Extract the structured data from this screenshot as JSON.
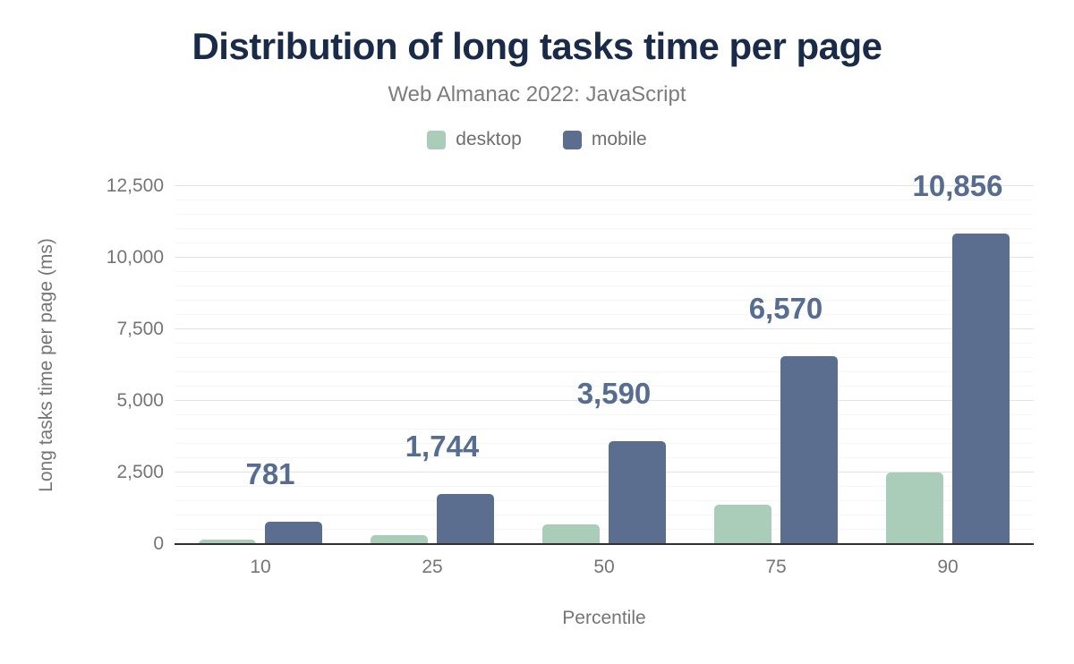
{
  "header": {
    "title": "Distribution of long tasks time per page",
    "subtitle": "Web Almanac 2022: JavaScript"
  },
  "legend": {
    "items": [
      {
        "label": "desktop",
        "color": "#a9cdb9"
      },
      {
        "label": "mobile",
        "color": "#5b6e90"
      }
    ]
  },
  "axes": {
    "x_title": "Percentile",
    "y_title": "Long tasks time per page (ms)"
  },
  "colors": {
    "title_text": "#1a2b49",
    "subtitle_text": "#7d7d7d",
    "axis_text": "#757575",
    "legend_text": "#6e6e6e",
    "desktop_bar": "#a9cdb9",
    "mobile_bar": "#5b6e90",
    "value_label_text": "#566d91",
    "major_gridline": "#e3e3e3",
    "minor_gridline": "#f5f5f5",
    "axis_line": "#2f2f2f",
    "background": "#ffffff"
  },
  "chart_data": {
    "type": "bar",
    "title": "Distribution of long tasks time per page",
    "subtitle": "Web Almanac 2022: JavaScript",
    "categories": [
      "10",
      "25",
      "50",
      "75",
      "90"
    ],
    "series": [
      {
        "name": "desktop",
        "color": "#a9cdb9",
        "values": [
          150,
          310,
          690,
          1360,
          2500
        ],
        "data_labels": []
      },
      {
        "name": "mobile",
        "color": "#5b6e90",
        "values": [
          781,
          1744,
          3590,
          6570,
          10856
        ],
        "data_labels": [
          "781",
          "1,744",
          "3,590",
          "6,570",
          "10,856"
        ]
      }
    ],
    "xlabel": "Percentile",
    "ylabel": "Long tasks time per page (ms)",
    "ylim": [
      0,
      12500
    ],
    "yticks": [
      0,
      2500,
      5000,
      7500,
      10000,
      12500
    ],
    "ytick_labels": [
      "0",
      "2,500",
      "5,000",
      "7,500",
      "10,000",
      "12,500"
    ],
    "minor_grid_step": 500,
    "grid": "horizontal",
    "legend_position": "top"
  }
}
